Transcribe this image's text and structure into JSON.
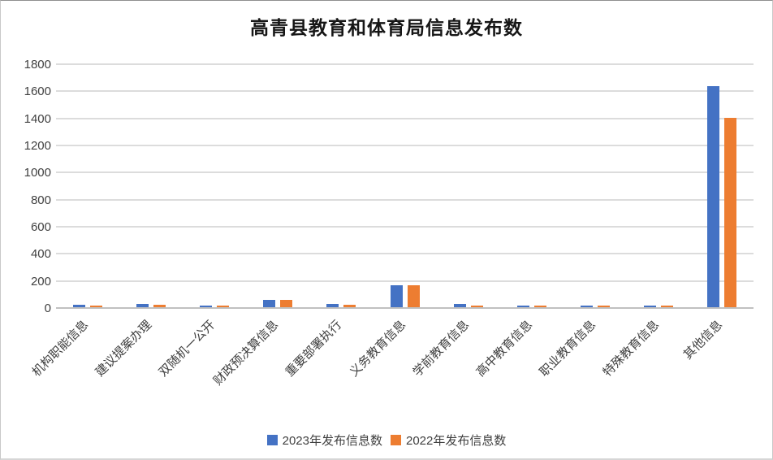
{
  "chart_data": {
    "type": "bar",
    "title": "高青县教育和体育局信息发布数",
    "categories": [
      "机构职能信息",
      "建议提案办理",
      "双随机一公开",
      "财政预决算信息",
      "重要部署执行",
      "义务教育信息",
      "学前教育信息",
      "高中教育信息",
      "职业教育信息",
      "特殊教育信息",
      "其他信息"
    ],
    "series": [
      {
        "name": "2023年发布信息数",
        "color": "#4472C4",
        "values": [
          20,
          25,
          12,
          55,
          22,
          165,
          22,
          13,
          13,
          13,
          1630
        ]
      },
      {
        "name": "2022年发布信息数",
        "color": "#ED7D31",
        "values": [
          12,
          20,
          10,
          52,
          20,
          165,
          12,
          12,
          12,
          12,
          1400
        ]
      }
    ],
    "xlabel": "",
    "ylabel": "",
    "ylim": [
      0,
      1800
    ],
    "y_ticks": [
      0,
      200,
      400,
      600,
      800,
      1000,
      1200,
      1400,
      1600,
      1800
    ],
    "grid": true,
    "legend_position": "bottom",
    "colors": {
      "gridline": "#dcdcdc",
      "axisline": "#c0c0c0",
      "tick_text": "#404040",
      "title_text": "#161616",
      "background": "#ffffff"
    }
  }
}
